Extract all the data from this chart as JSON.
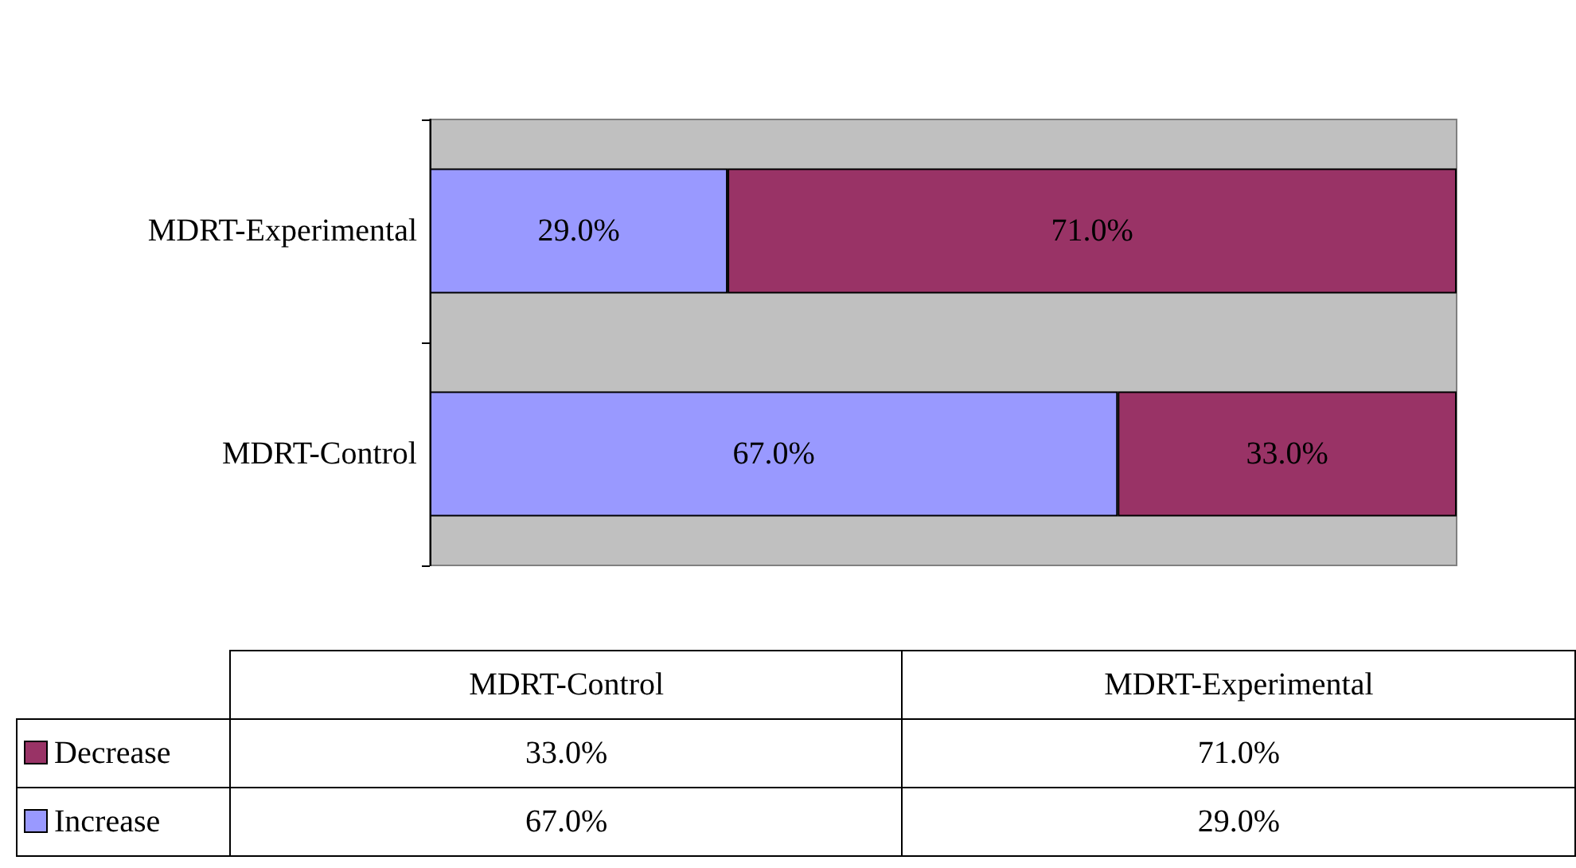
{
  "chart_data": {
    "type": "bar",
    "orientation": "horizontal",
    "stacked": true,
    "legend": "bottom",
    "categories": [
      "MDRT-Experimental",
      "MDRT-Control"
    ],
    "series": [
      {
        "name": "Increase",
        "color": "#9999ff",
        "values": [
          29.0,
          67.0
        ],
        "value_labels": [
          "29.0%",
          "67.0%"
        ]
      },
      {
        "name": "Decrease",
        "color": "#993366",
        "values": [
          71.0,
          33.0
        ],
        "value_labels": [
          "71.0%",
          "33.0%"
        ]
      }
    ]
  }
}
